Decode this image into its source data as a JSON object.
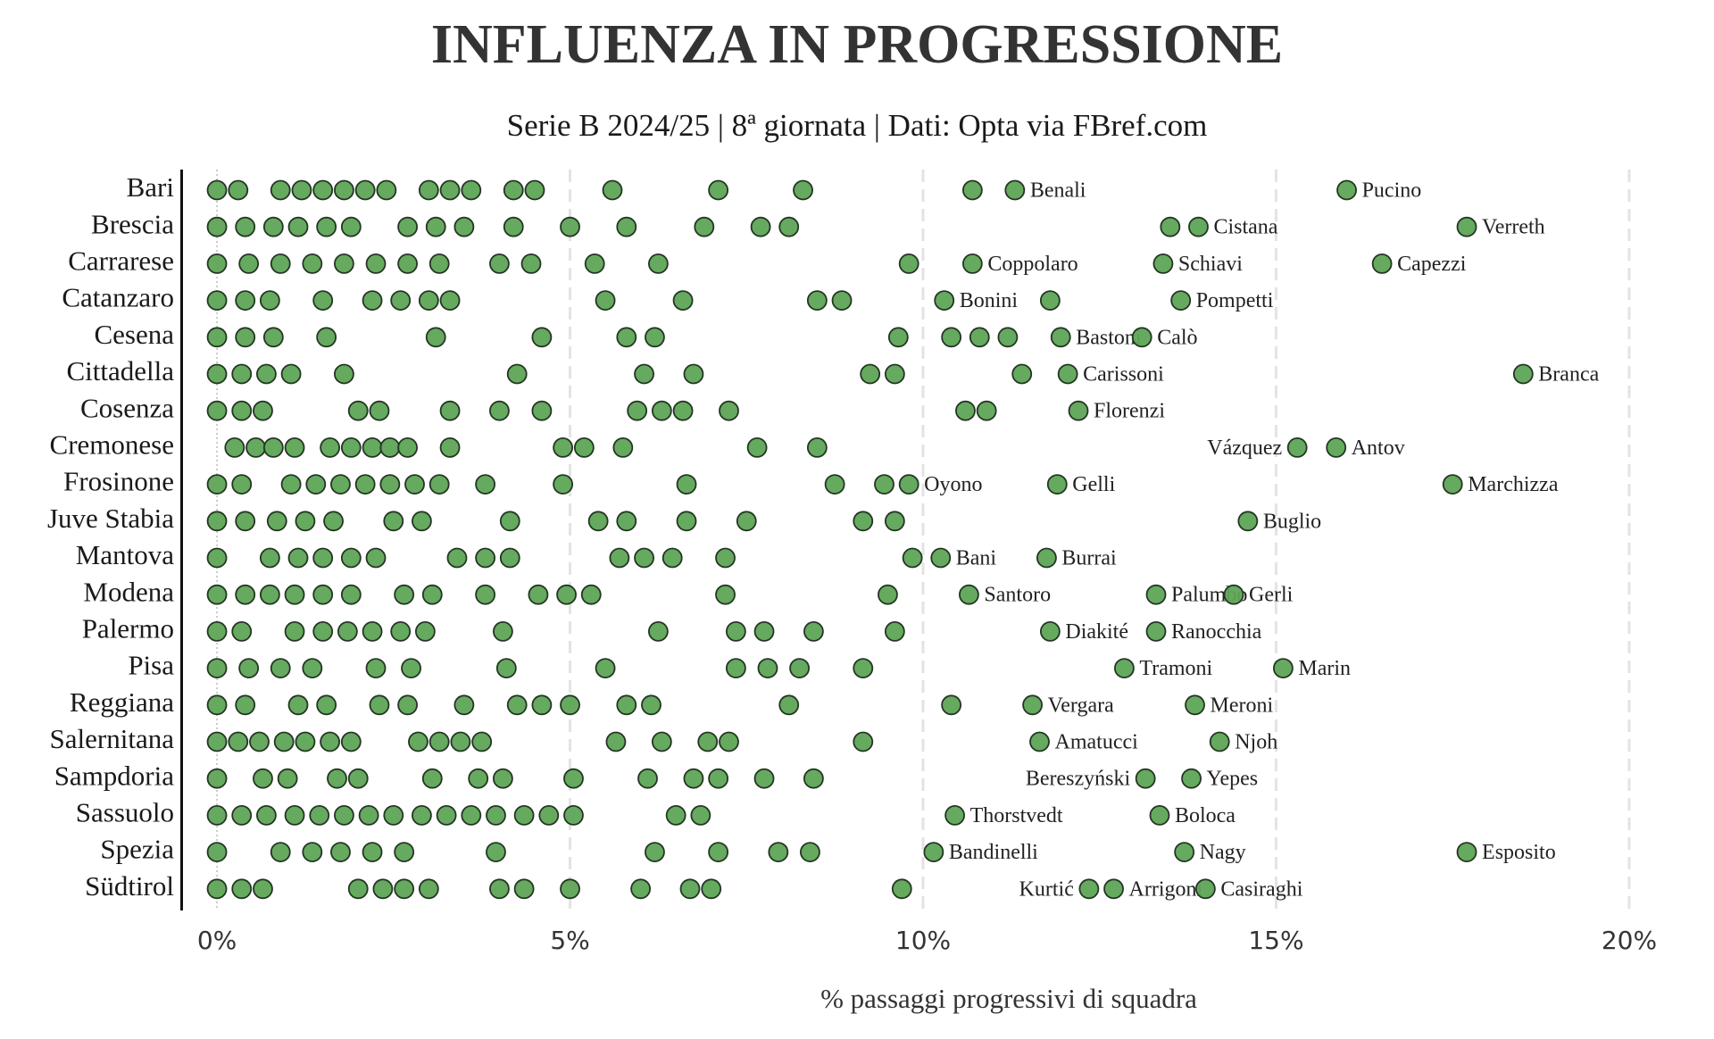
{
  "chart_data": {
    "type": "strip",
    "title": "INFLUENZA IN PROGRESSIONE",
    "subtitle": "Serie B 2024/25 | 8ª giornata | Dati: Opta via FBref.com",
    "xlabel": "% passaggi progressivi di squadra",
    "xlim": [
      -0.5,
      20.5
    ],
    "xticks": [
      {
        "value": 0,
        "label": "0%"
      },
      {
        "value": 5,
        "label": "5%"
      },
      {
        "value": 10,
        "label": "10%"
      },
      {
        "value": 15,
        "label": "15%"
      },
      {
        "value": 20,
        "label": "20%"
      }
    ],
    "grid": true,
    "color": "#5da555",
    "rows": [
      {
        "team": "Bari",
        "values": [
          0,
          0.3,
          0.9,
          1.2,
          1.5,
          1.8,
          2.1,
          2.4,
          3.0,
          3.3,
          3.6,
          4.2,
          4.5,
          5.6,
          7.1,
          8.3,
          10.7
        ],
        "named": [
          {
            "name": "Benali",
            "value": 11.3
          },
          {
            "name": "Pucino",
            "value": 16.0
          }
        ]
      },
      {
        "team": "Brescia",
        "values": [
          0,
          0.4,
          0.8,
          1.15,
          1.55,
          1.9,
          2.7,
          3.1,
          3.5,
          4.2,
          5.0,
          5.8,
          6.9,
          7.7,
          8.1,
          13.5
        ],
        "named": [
          {
            "name": "Cistana",
            "value": 13.9
          },
          {
            "name": "Verreth",
            "value": 17.7
          }
        ]
      },
      {
        "team": "Carrarese",
        "values": [
          0,
          0.45,
          0.9,
          1.35,
          1.8,
          2.25,
          2.7,
          3.15,
          4.0,
          4.45,
          5.35,
          6.25,
          9.8
        ],
        "named": [
          {
            "name": "Coppolaro",
            "value": 10.7
          },
          {
            "name": "Schiavi",
            "value": 13.4
          },
          {
            "name": "Capezzi",
            "value": 16.5
          }
        ]
      },
      {
        "team": "Catanzaro",
        "values": [
          0,
          0.4,
          0.75,
          1.5,
          2.2,
          2.6,
          3.0,
          3.3,
          5.5,
          6.6,
          8.5,
          8.85,
          11.8
        ],
        "named": [
          {
            "name": "Bonini",
            "value": 10.3
          },
          {
            "name": "Pompetti",
            "value": 13.65
          }
        ]
      },
      {
        "team": "Cesena",
        "values": [
          0,
          0.4,
          0.8,
          1.55,
          3.1,
          4.6,
          5.8,
          6.2,
          9.65,
          10.4,
          10.8,
          11.2
        ],
        "named": [
          {
            "name": "Bastoni",
            "value": 11.95
          },
          {
            "name": "Calò",
            "value": 13.1
          }
        ]
      },
      {
        "team": "Cittadella",
        "values": [
          0,
          0.35,
          0.7,
          1.05,
          1.8,
          4.25,
          6.05,
          6.75,
          9.25,
          9.6,
          11.4
        ],
        "named": [
          {
            "name": "Carissoni",
            "value": 12.05
          },
          {
            "name": "Branca",
            "value": 18.5
          }
        ]
      },
      {
        "team": "Cosenza",
        "values": [
          0,
          0.35,
          0.65,
          2.0,
          2.3,
          3.3,
          4.0,
          4.6,
          5.95,
          6.3,
          6.6,
          7.25,
          10.6,
          10.9
        ],
        "named": [
          {
            "name": "Florenzi",
            "value": 12.2
          }
        ]
      },
      {
        "team": "Cremonese",
        "values": [
          0.25,
          0.55,
          0.8,
          1.1,
          1.6,
          1.9,
          2.2,
          2.45,
          2.7,
          3.3,
          4.9,
          5.2,
          5.75,
          7.65,
          8.5
        ],
        "named": [
          {
            "name": "Vázquez",
            "value": 15.3
          },
          {
            "name": "Antov",
            "value": 15.85
          }
        ]
      },
      {
        "team": "Frosinone",
        "values": [
          0,
          0.35,
          1.05,
          1.4,
          1.75,
          2.1,
          2.45,
          2.8,
          3.15,
          3.8,
          4.9,
          6.65,
          8.75,
          9.45
        ],
        "named": [
          {
            "name": "Oyono",
            "value": 9.8
          },
          {
            "name": "Gelli",
            "value": 11.9
          },
          {
            "name": "Marchizza",
            "value": 17.5
          }
        ]
      },
      {
        "team": "Juve Stabia",
        "values": [
          0,
          0.4,
          0.85,
          1.25,
          1.65,
          2.5,
          2.9,
          4.15,
          5.4,
          5.8,
          6.65,
          7.5,
          9.15,
          9.6
        ],
        "named": [
          {
            "name": "Buglio",
            "value": 14.6
          }
        ]
      },
      {
        "team": "Mantova",
        "values": [
          0,
          0.75,
          1.15,
          1.5,
          1.9,
          2.25,
          3.4,
          3.8,
          4.15,
          5.7,
          6.05,
          6.45,
          7.2,
          9.85
        ],
        "named": [
          {
            "name": "Bani",
            "value": 10.25
          },
          {
            "name": "Burrai",
            "value": 11.75
          }
        ]
      },
      {
        "team": "Modena",
        "values": [
          0,
          0.4,
          0.75,
          1.1,
          1.5,
          1.9,
          2.65,
          3.05,
          3.8,
          4.55,
          4.95,
          5.3,
          7.2,
          9.5
        ],
        "named": [
          {
            "name": "Santoro",
            "value": 10.65
          },
          {
            "name": "Palumbo",
            "value": 13.3
          },
          {
            "name": "Gerli",
            "value": 14.4
          }
        ]
      },
      {
        "team": "Palermo",
        "values": [
          0,
          0.35,
          1.1,
          1.5,
          1.85,
          2.2,
          2.6,
          2.95,
          4.05,
          6.25,
          7.35,
          7.75,
          8.45,
          9.6
        ],
        "named": [
          {
            "name": "Diakité",
            "value": 11.8
          },
          {
            "name": "Ranocchia",
            "value": 13.3
          }
        ]
      },
      {
        "team": "Pisa",
        "values": [
          0,
          0.45,
          0.9,
          1.35,
          2.25,
          2.75,
          4.1,
          5.5,
          7.35,
          7.8,
          8.25,
          9.15
        ],
        "named": [
          {
            "name": "Tramoni",
            "value": 12.85
          },
          {
            "name": "Marin",
            "value": 15.1
          }
        ]
      },
      {
        "team": "Reggiana",
        "values": [
          0,
          0.4,
          1.15,
          1.55,
          2.3,
          2.7,
          3.5,
          4.25,
          4.6,
          5.0,
          5.8,
          6.15,
          8.1,
          10.4
        ],
        "named": [
          {
            "name": "Vergara",
            "value": 11.55
          },
          {
            "name": "Meroni",
            "value": 13.85
          }
        ]
      },
      {
        "team": "Salernitana",
        "values": [
          0,
          0.3,
          0.6,
          0.95,
          1.25,
          1.6,
          1.9,
          2.85,
          3.15,
          3.45,
          3.75,
          5.65,
          6.3,
          6.95,
          7.25,
          9.15
        ],
        "named": [
          {
            "name": "Amatucci",
            "value": 11.65
          },
          {
            "name": "Njoh",
            "value": 14.2
          }
        ]
      },
      {
        "team": "Sampdoria",
        "values": [
          0,
          0.65,
          1.0,
          1.7,
          2.0,
          3.05,
          3.7,
          4.05,
          5.05,
          6.1,
          6.75,
          7.1,
          7.75,
          8.45
        ],
        "named": [
          {
            "name": "Bereszyński",
            "value": 13.15
          },
          {
            "name": "Yepes",
            "value": 13.8
          }
        ]
      },
      {
        "team": "Sassuolo",
        "values": [
          0,
          0.35,
          0.7,
          1.1,
          1.45,
          1.8,
          2.15,
          2.5,
          2.9,
          3.25,
          3.6,
          3.95,
          4.35,
          4.7,
          5.05,
          6.5,
          6.85
        ],
        "named": [
          {
            "name": "Thorstvedt",
            "value": 10.45
          },
          {
            "name": "Boloca",
            "value": 13.35
          }
        ]
      },
      {
        "team": "Spezia",
        "values": [
          0,
          0.9,
          1.35,
          1.75,
          2.2,
          2.65,
          3.95,
          6.2,
          7.1,
          7.95,
          8.4
        ],
        "named": [
          {
            "name": "Bandinelli",
            "value": 10.15
          },
          {
            "name": "Nagy",
            "value": 13.7
          },
          {
            "name": "Esposito",
            "value": 17.7
          }
        ]
      },
      {
        "team": "Südtirol",
        "values": [
          0,
          0.35,
          0.65,
          2.0,
          2.35,
          2.65,
          3.0,
          4.0,
          4.35,
          5.0,
          6.0,
          6.7,
          7.0,
          9.7
        ],
        "named": [
          {
            "name": "Kurtić",
            "value": 12.35
          },
          {
            "name": "Arrigoni",
            "value": 12.7
          },
          {
            "name": "Casiraghi",
            "value": 14.0
          }
        ]
      }
    ]
  }
}
